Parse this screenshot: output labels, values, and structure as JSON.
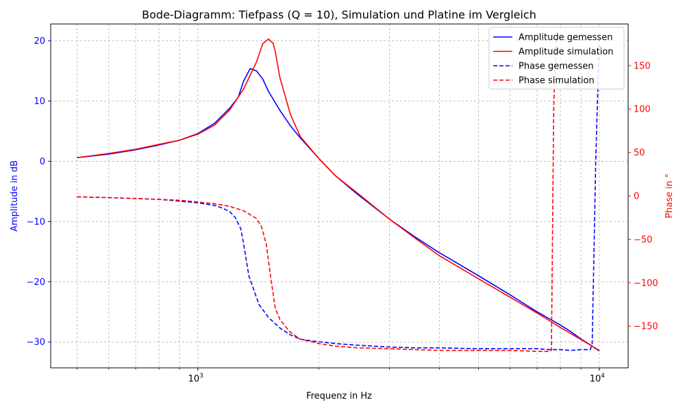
{
  "chart_data": {
    "type": "line",
    "title": "Bode-Diagramm: Tiefpass (Q = 10), Simulation und Platine im Vergleich",
    "xlabel": "Frequenz in Hz",
    "ylabel_left": "Amplitude in dB",
    "ylabel_right": "Phase in °",
    "x_scale": "log",
    "xlim": [
      430,
      11800
    ],
    "ylim_left": [
      -34.3,
      22.8
    ],
    "ylim_right": [
      -198,
      198
    ],
    "x_tick_labels": [
      {
        "value": 1000,
        "base": "10",
        "exp": "3"
      },
      {
        "value": 10000,
        "base": "10",
        "exp": "4"
      }
    ],
    "x_minor_ticks": [
      500,
      600,
      700,
      800,
      900,
      2000,
      3000,
      4000,
      5000,
      6000,
      7000,
      8000,
      9000
    ],
    "y_left_ticks": [
      {
        "value": -30,
        "label": "−30"
      },
      {
        "value": -20,
        "label": "−20"
      },
      {
        "value": -10,
        "label": "−10"
      },
      {
        "value": 0,
        "label": "0"
      },
      {
        "value": 10,
        "label": "10"
      },
      {
        "value": 20,
        "label": "20"
      }
    ],
    "y_right_ticks": [
      {
        "value": -150,
        "label": "−150"
      },
      {
        "value": -100,
        "label": "−100"
      },
      {
        "value": -50,
        "label": "−50"
      },
      {
        "value": 0,
        "label": "0"
      },
      {
        "value": 50,
        "label": "50"
      },
      {
        "value": 100,
        "label": "100"
      },
      {
        "value": 150,
        "label": "150"
      }
    ],
    "grid": true,
    "legend_position": "upper right",
    "colors": {
      "gemessen": "#0000ff",
      "simulation": "#ff0000",
      "left_axis": "#0000ff",
      "right_axis": "#ff0000"
    },
    "series": [
      {
        "name": "Amplitude gemessen",
        "axis": "left",
        "style": "solid",
        "color": "#0000ff",
        "x": [
          500,
          600,
          700,
          800,
          900,
          1000,
          1100,
          1200,
          1260,
          1300,
          1350,
          1400,
          1450,
          1500,
          1600,
          1700,
          1800,
          2000,
          2200,
          2500,
          3000,
          3500,
          4000,
          5000,
          6000,
          7000,
          8000,
          8500,
          9000,
          9500,
          10000
        ],
        "y": [
          0.6,
          1.2,
          1.9,
          2.7,
          3.5,
          4.6,
          6.3,
          8.8,
          10.6,
          13.3,
          15.4,
          15.0,
          13.7,
          11.6,
          8.5,
          5.9,
          3.9,
          0.5,
          -2.4,
          -5.5,
          -9.6,
          -12.7,
          -15.2,
          -19.0,
          -22.2,
          -25.0,
          -27.2,
          -28.3,
          -29.5,
          -30.5,
          -31.5
        ]
      },
      {
        "name": "Amplitude simulation",
        "axis": "left",
        "style": "solid",
        "color": "#ff0000",
        "x": [
          500,
          600,
          700,
          800,
          900,
          1000,
          1100,
          1200,
          1300,
          1400,
          1450,
          1500,
          1540,
          1560,
          1600,
          1700,
          1800,
          2000,
          2200,
          2500,
          3000,
          3500,
          4000,
          5000,
          6000,
          7000,
          8000,
          9000,
          10000
        ],
        "y": [
          0.6,
          1.3,
          2.0,
          2.8,
          3.5,
          4.5,
          6.0,
          8.5,
          12.0,
          16.5,
          19.5,
          20.3,
          19.6,
          18.2,
          14.0,
          7.8,
          4.1,
          0.5,
          -2.4,
          -5.3,
          -9.6,
          -12.9,
          -15.7,
          -19.5,
          -22.6,
          -25.2,
          -27.6,
          -29.6,
          -31.4
        ]
      },
      {
        "name": "Phase gemessen",
        "axis": "right",
        "style": "dashed",
        "color": "#0000ff",
        "x": [
          500,
          600,
          700,
          800,
          900,
          1000,
          1100,
          1150,
          1200,
          1240,
          1280,
          1300,
          1340,
          1380,
          1420,
          1500,
          1600,
          1700,
          1800,
          2000,
          2200,
          2500,
          3000,
          3500,
          4000,
          5000,
          6000,
          7000,
          7500,
          8000,
          8500,
          9000,
          9500,
          9600,
          9800,
          10000
        ],
        "y": [
          -1,
          -2,
          -3,
          -4,
          -6,
          -8,
          -11,
          -14,
          -18,
          -25,
          -38,
          -55,
          -92,
          -109,
          -125,
          -140,
          -152,
          -160,
          -165,
          -168,
          -170,
          -172,
          -174,
          -175,
          -175,
          -176,
          -176,
          -176,
          -177,
          -177,
          -178,
          -177,
          -177,
          -170,
          40,
          183
        ]
      },
      {
        "name": "Phase simulation",
        "axis": "right",
        "style": "dashed",
        "color": "#ff0000",
        "x": [
          500,
          600,
          700,
          800,
          900,
          1000,
          1100,
          1200,
          1300,
          1400,
          1440,
          1480,
          1520,
          1560,
          1600,
          1650,
          1700,
          1800,
          2000,
          2200,
          2500,
          3000,
          3500,
          4000,
          5000,
          6000,
          7000,
          7200,
          7500,
          7600,
          7700,
          7800,
          8000,
          9000,
          10000
        ],
        "y": [
          -1,
          -2,
          -3,
          -4,
          -5,
          -7,
          -9,
          -12,
          -17,
          -26,
          -35,
          -55,
          -95,
          -130,
          -142,
          -150,
          -157,
          -165,
          -170,
          -173,
          -175,
          -176,
          -177,
          -178,
          -178,
          -178,
          -179,
          -179,
          -179,
          -178,
          100,
          180,
          180,
          180,
          180
        ]
      }
    ]
  }
}
